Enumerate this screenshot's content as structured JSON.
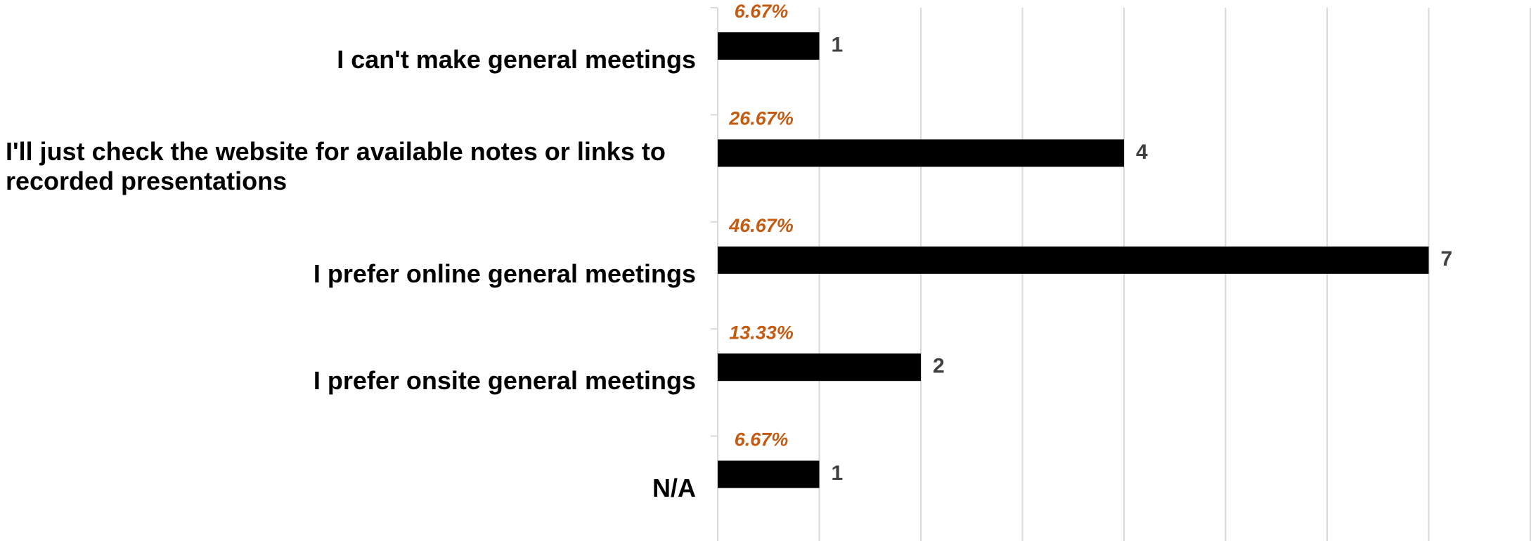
{
  "chart_data": {
    "type": "barh",
    "categories": [
      "I can't make general meetings",
      "I'll just check the website for available notes or links to recorded presentations",
      "I prefer online general meetings",
      "I prefer onsite general meetings",
      "N/A"
    ],
    "values": [
      1,
      4,
      7,
      2,
      1
    ],
    "percent_labels": [
      "6.67%",
      "26.67%",
      "46.67%",
      "13.33%",
      "6.67%"
    ],
    "color": "#000000",
    "xlim": [
      0,
      8
    ],
    "xticks": [
      0,
      1,
      2,
      3,
      4,
      5,
      6,
      7,
      8
    ],
    "grid": true
  }
}
